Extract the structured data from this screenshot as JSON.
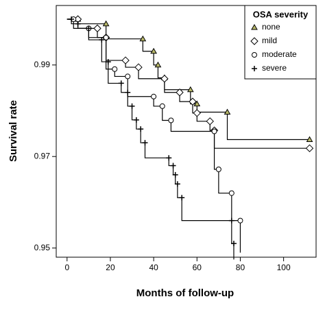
{
  "chart_data": {
    "type": "step",
    "y_label": "Survival rate",
    "x_label": "Months of follow-up",
    "legend_title": "OSA severity",
    "legend": "upper right",
    "xlim": [
      -5,
      115
    ],
    "ylim": [
      0.948,
      1.003
    ],
    "xticks": [
      0,
      20,
      40,
      60,
      80,
      100
    ],
    "yticks": [
      0.95,
      0.97,
      0.99
    ],
    "series": [
      {
        "name": "none",
        "color": "#000000",
        "marker": "triangle",
        "marker_color": "#b8b86a",
        "x": [
          0,
          5,
          18,
          35,
          40,
          42,
          45,
          57,
          60,
          74,
          112
        ],
        "values": [
          1.0,
          0.999,
          0.9957,
          0.993,
          0.99,
          0.9872,
          0.9846,
          0.9815,
          0.9797,
          0.9737,
          0.9737
        ]
      },
      {
        "name": "mild",
        "color": "#000000",
        "marker": "diamond",
        "marker_color": "#ffffff",
        "x": [
          0,
          5,
          14,
          18,
          27,
          33,
          45,
          52,
          58,
          60,
          66,
          68,
          112
        ],
        "values": [
          1.0,
          0.998,
          0.996,
          0.991,
          0.9895,
          0.987,
          0.984,
          0.982,
          0.9795,
          0.9777,
          0.9757,
          0.9718,
          0.9718
        ]
      },
      {
        "name": "moderate",
        "color": "#000000",
        "marker": "circle",
        "marker_color": "#ffffff",
        "x": [
          0,
          3,
          10,
          18,
          22,
          28,
          40,
          44,
          48,
          68,
          70,
          76,
          80
        ],
        "values": [
          1.0,
          0.998,
          0.996,
          0.9891,
          0.9875,
          0.9831,
          0.981,
          0.9779,
          0.9755,
          0.9672,
          0.962,
          0.956,
          0.949
        ]
      },
      {
        "name": "severe",
        "color": "#000000",
        "marker": "plus",
        "marker_color": "#000000",
        "x": [
          0,
          2,
          5,
          10,
          16,
          19,
          25,
          28,
          30,
          32,
          34,
          36,
          47,
          49,
          50,
          51,
          53,
          76,
          77
        ],
        "values": [
          1.0,
          0.999,
          0.998,
          0.9955,
          0.9907,
          0.986,
          0.984,
          0.981,
          0.978,
          0.976,
          0.973,
          0.9697,
          0.968,
          0.966,
          0.964,
          0.961,
          0.956,
          0.951,
          0.9475
        ]
      }
    ]
  }
}
